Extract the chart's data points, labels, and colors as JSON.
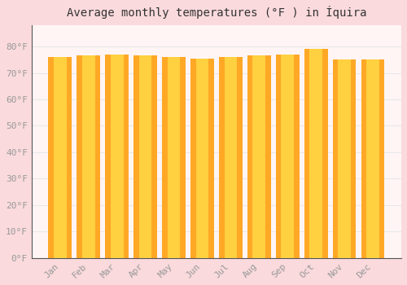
{
  "title": "Average monthly temperatures (°F ) in Íquira",
  "months": [
    "Jan",
    "Feb",
    "Mar",
    "Apr",
    "May",
    "Jun",
    "Jul",
    "Aug",
    "Sep",
    "Oct",
    "Nov",
    "Dec"
  ],
  "values": [
    76.0,
    76.5,
    77.0,
    76.5,
    76.0,
    75.5,
    76.0,
    76.5,
    77.0,
    79.0,
    75.0,
    75.0
  ],
  "bar_color": "#FFA500",
  "bar_highlight": "#FFD700",
  "background_color": "#FADADD",
  "plot_bg_color": "#FFF5F5",
  "grid_color": "#E8E8E8",
  "tick_color": "#999999",
  "title_fontsize": 10,
  "tick_fontsize": 8,
  "ylim": [
    0,
    88
  ],
  "yticks": [
    0,
    10,
    20,
    30,
    40,
    50,
    60,
    70,
    80
  ]
}
